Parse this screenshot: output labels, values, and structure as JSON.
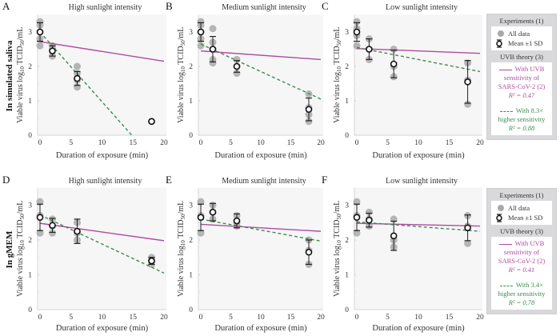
{
  "row_labels": [
    "In simulated saliva",
    "In gMEM"
  ],
  "legend_panels": [
    {
      "experiments_title": "Experiments (1)",
      "all_data_label": "All data",
      "mean_label": "Mean ±1 SD",
      "theory_title": "UVB theory (3)",
      "uvb_line1": "With UVB",
      "uvb_line2": "sensitivity of",
      "uvb_line3": "SARS-CoV-2 (2)",
      "uvb_r2": "R² = 0.47",
      "hs_line1": "With 8.3×",
      "hs_line2": "higher sensitivity",
      "hs_r2": "R² = 0.88"
    },
    {
      "experiments_title": "Experiments (1)",
      "all_data_label": "All data",
      "mean_label": "Mean ±1 SD",
      "theory_title": "UVB theory (3)",
      "uvb_line1": "With UVB",
      "uvb_line2": "sensitivity of",
      "uvb_line3": "SARS-CoV-2 (2)",
      "uvb_r2": "R² = 0.41",
      "hs_line1": "With 3.4×",
      "hs_line2": "higher sensitivity",
      "hs_r2": "R² = 0.78"
    }
  ],
  "colors": {
    "uvb": "#b14aa0",
    "high_sensitivity": "#3d8c4e",
    "data_points": "#a9a9a9",
    "mean_marker": "#111111",
    "plot_bg": "#f6f6f7"
  },
  "chart_data": [
    {
      "panel": "A",
      "type": "scatter",
      "title": "High sunlight intensity",
      "xlabel": "Duration of exposure (min)",
      "ylabel": "Viable virus log10 TCID50/mL",
      "xlim": [
        0,
        20
      ],
      "ylim": [
        0,
        3.5
      ],
      "xticks": [
        0,
        5,
        10,
        15,
        20
      ],
      "yticks": [
        0,
        1,
        2,
        3
      ],
      "all_data": [
        [
          0,
          3.3
        ],
        [
          0,
          3.2
        ],
        [
          0,
          3.0
        ],
        [
          0,
          2.8
        ],
        [
          0,
          2.6
        ],
        [
          2,
          2.6
        ],
        [
          2,
          2.5
        ],
        [
          2,
          2.3
        ],
        [
          6,
          2.0
        ],
        [
          6,
          1.8
        ],
        [
          6,
          1.6
        ],
        [
          6,
          1.4
        ],
        [
          18,
          0.4
        ]
      ],
      "means": [
        {
          "x": 0,
          "mean": 3.0,
          "sd": 0.27
        },
        {
          "x": 2,
          "mean": 2.45,
          "sd": 0.15
        },
        {
          "x": 6,
          "mean": 1.65,
          "sd": 0.2
        },
        {
          "x": 18,
          "mean": 0.4,
          "sd": 0
        }
      ],
      "uvb_line": [
        [
          0,
          2.72
        ],
        [
          20,
          2.15
        ]
      ],
      "high_sensitivity_line": [
        [
          0,
          3.0
        ],
        [
          14.8,
          0
        ]
      ]
    },
    {
      "panel": "B",
      "type": "scatter",
      "title": "Medium sunlight intensity",
      "xlabel": "Duration of exposure (min)",
      "ylabel": "Viable virus log10 TCID50/mL",
      "xlim": [
        0,
        20
      ],
      "ylim": [
        0,
        3.5
      ],
      "xticks": [
        0,
        5,
        10,
        15,
        20
      ],
      "yticks": [
        0,
        1,
        2,
        3
      ],
      "all_data": [
        [
          0,
          3.3
        ],
        [
          0,
          3.2
        ],
        [
          0,
          3.0
        ],
        [
          0,
          2.8
        ],
        [
          0,
          2.6
        ],
        [
          2,
          3.1
        ],
        [
          2,
          2.7
        ],
        [
          2,
          2.5
        ],
        [
          2,
          2.2
        ],
        [
          2,
          2.1
        ],
        [
          6,
          2.2
        ],
        [
          6,
          2.0
        ],
        [
          6,
          1.8
        ],
        [
          18,
          1.2
        ],
        [
          18,
          0.8
        ],
        [
          18,
          0.6
        ],
        [
          18,
          0.4
        ]
      ],
      "means": [
        {
          "x": 0,
          "mean": 3.0,
          "sd": 0.27
        },
        {
          "x": 2,
          "mean": 2.5,
          "sd": 0.37
        },
        {
          "x": 6,
          "mean": 2.0,
          "sd": 0.17
        },
        {
          "x": 18,
          "mean": 0.75,
          "sd": 0.33
        }
      ],
      "uvb_line": [
        [
          0,
          2.45
        ],
        [
          20,
          2.2
        ]
      ],
      "high_sensitivity_line": [
        [
          0,
          2.65
        ],
        [
          20,
          1.05
        ]
      ]
    },
    {
      "panel": "C",
      "type": "scatter",
      "title": "Low sunlight intensity",
      "xlabel": "Duration of exposure (min)",
      "ylabel": "Viable virus log10 TCID50/mL",
      "xlim": [
        0,
        20
      ],
      "ylim": [
        0,
        3.5
      ],
      "xticks": [
        0,
        5,
        10,
        15,
        20
      ],
      "yticks": [
        0,
        1,
        2,
        3
      ],
      "all_data": [
        [
          0,
          3.3
        ],
        [
          0,
          3.1
        ],
        [
          0,
          2.9
        ],
        [
          0,
          2.6
        ],
        [
          2,
          2.8
        ],
        [
          2,
          2.5
        ],
        [
          2,
          2.2
        ],
        [
          6,
          2.5
        ],
        [
          6,
          2.0
        ],
        [
          6,
          1.7
        ],
        [
          18,
          2.1
        ],
        [
          18,
          1.6
        ],
        [
          18,
          0.9
        ]
      ],
      "means": [
        {
          "x": 0,
          "mean": 3.0,
          "sd": 0.27
        },
        {
          "x": 2,
          "mean": 2.5,
          "sd": 0.3
        },
        {
          "x": 6,
          "mean": 2.07,
          "sd": 0.4
        },
        {
          "x": 18,
          "mean": 1.55,
          "sd": 0.62
        }
      ],
      "uvb_line": [
        [
          0,
          2.52
        ],
        [
          20,
          2.38
        ]
      ],
      "high_sensitivity_line": [
        [
          0,
          2.55
        ],
        [
          20,
          1.85
        ]
      ]
    },
    {
      "panel": "D",
      "type": "scatter",
      "title": "High sunlight intensity",
      "xlabel": "Duration of exposure (min)",
      "ylabel": "Viable virus log10 TCID50/mL",
      "xlim": [
        0,
        20
      ],
      "ylim": [
        0,
        3.5
      ],
      "xticks": [
        0,
        5,
        10,
        15,
        20
      ],
      "yticks": [
        0,
        1,
        2,
        3
      ],
      "all_data": [
        [
          0,
          3.1
        ],
        [
          0,
          2.7
        ],
        [
          0,
          2.2
        ],
        [
          2,
          2.6
        ],
        [
          2,
          2.4
        ],
        [
          2,
          2.2
        ],
        [
          6,
          2.5
        ],
        [
          6,
          2.2
        ],
        [
          6,
          2.0
        ],
        [
          18,
          1.5
        ],
        [
          18,
          1.4
        ],
        [
          18,
          1.3
        ]
      ],
      "means": [
        {
          "x": 0,
          "mean": 2.65,
          "sd": 0.38
        },
        {
          "x": 2,
          "mean": 2.42,
          "sd": 0.2
        },
        {
          "x": 6,
          "mean": 2.25,
          "sd": 0.35
        },
        {
          "x": 18,
          "mean": 1.4,
          "sd": 0.1
        }
      ],
      "uvb_line": [
        [
          0,
          2.48
        ],
        [
          20,
          1.98
        ]
      ],
      "high_sensitivity_line": [
        [
          0,
          2.72
        ],
        [
          20,
          1.05
        ]
      ]
    },
    {
      "panel": "E",
      "type": "scatter",
      "title": "Medium sunlight intensity",
      "xlabel": "Duration of exposure (min)",
      "ylabel": "Viable virus log10 TCID50/mL",
      "xlim": [
        0,
        20
      ],
      "ylim": [
        0,
        3.5
      ],
      "xticks": [
        0,
        5,
        10,
        15,
        20
      ],
      "yticks": [
        0,
        1,
        2,
        3
      ],
      "all_data": [
        [
          0,
          3.1
        ],
        [
          0,
          2.7
        ],
        [
          0,
          2.2
        ],
        [
          2,
          3.0
        ],
        [
          2,
          2.8
        ],
        [
          2,
          2.6
        ],
        [
          6,
          2.7
        ],
        [
          6,
          2.5
        ],
        [
          6,
          2.4
        ],
        [
          18,
          2.0
        ],
        [
          18,
          1.7
        ],
        [
          18,
          1.3
        ]
      ],
      "means": [
        {
          "x": 0,
          "mean": 2.65,
          "sd": 0.38
        },
        {
          "x": 2,
          "mean": 2.8,
          "sd": 0.25
        },
        {
          "x": 6,
          "mean": 2.55,
          "sd": 0.2
        },
        {
          "x": 18,
          "mean": 1.65,
          "sd": 0.35
        }
      ],
      "uvb_line": [
        [
          0,
          2.45
        ],
        [
          20,
          2.25
        ]
      ],
      "high_sensitivity_line": [
        [
          0,
          2.6
        ],
        [
          20,
          1.97
        ]
      ]
    },
    {
      "panel": "F",
      "type": "scatter",
      "title": "Low sunlight intensity",
      "xlabel": "Duration of exposure (min)",
      "ylabel": "Viable virus log10 TCID50/mL",
      "xlim": [
        0,
        20
      ],
      "ylim": [
        0,
        3.5
      ],
      "xticks": [
        0,
        5,
        10,
        15,
        20
      ],
      "yticks": [
        0,
        1,
        2,
        3
      ],
      "all_data": [
        [
          0,
          3.1
        ],
        [
          0,
          2.7
        ],
        [
          0,
          2.2
        ],
        [
          2,
          2.8
        ],
        [
          2,
          2.6
        ],
        [
          2,
          2.4
        ],
        [
          6,
          2.6
        ],
        [
          6,
          2.0
        ],
        [
          6,
          1.8
        ],
        [
          18,
          2.7
        ],
        [
          18,
          2.4
        ],
        [
          18,
          1.9
        ]
      ],
      "means": [
        {
          "x": 0,
          "mean": 2.65,
          "sd": 0.38
        },
        {
          "x": 2,
          "mean": 2.57,
          "sd": 0.2
        },
        {
          "x": 6,
          "mean": 2.12,
          "sd": 0.42
        },
        {
          "x": 18,
          "mean": 2.35,
          "sd": 0.37
        }
      ],
      "uvb_line": [
        [
          0,
          2.48
        ],
        [
          20,
          2.4
        ]
      ],
      "high_sensitivity_line": [
        [
          0,
          2.52
        ],
        [
          20,
          2.25
        ]
      ]
    }
  ]
}
